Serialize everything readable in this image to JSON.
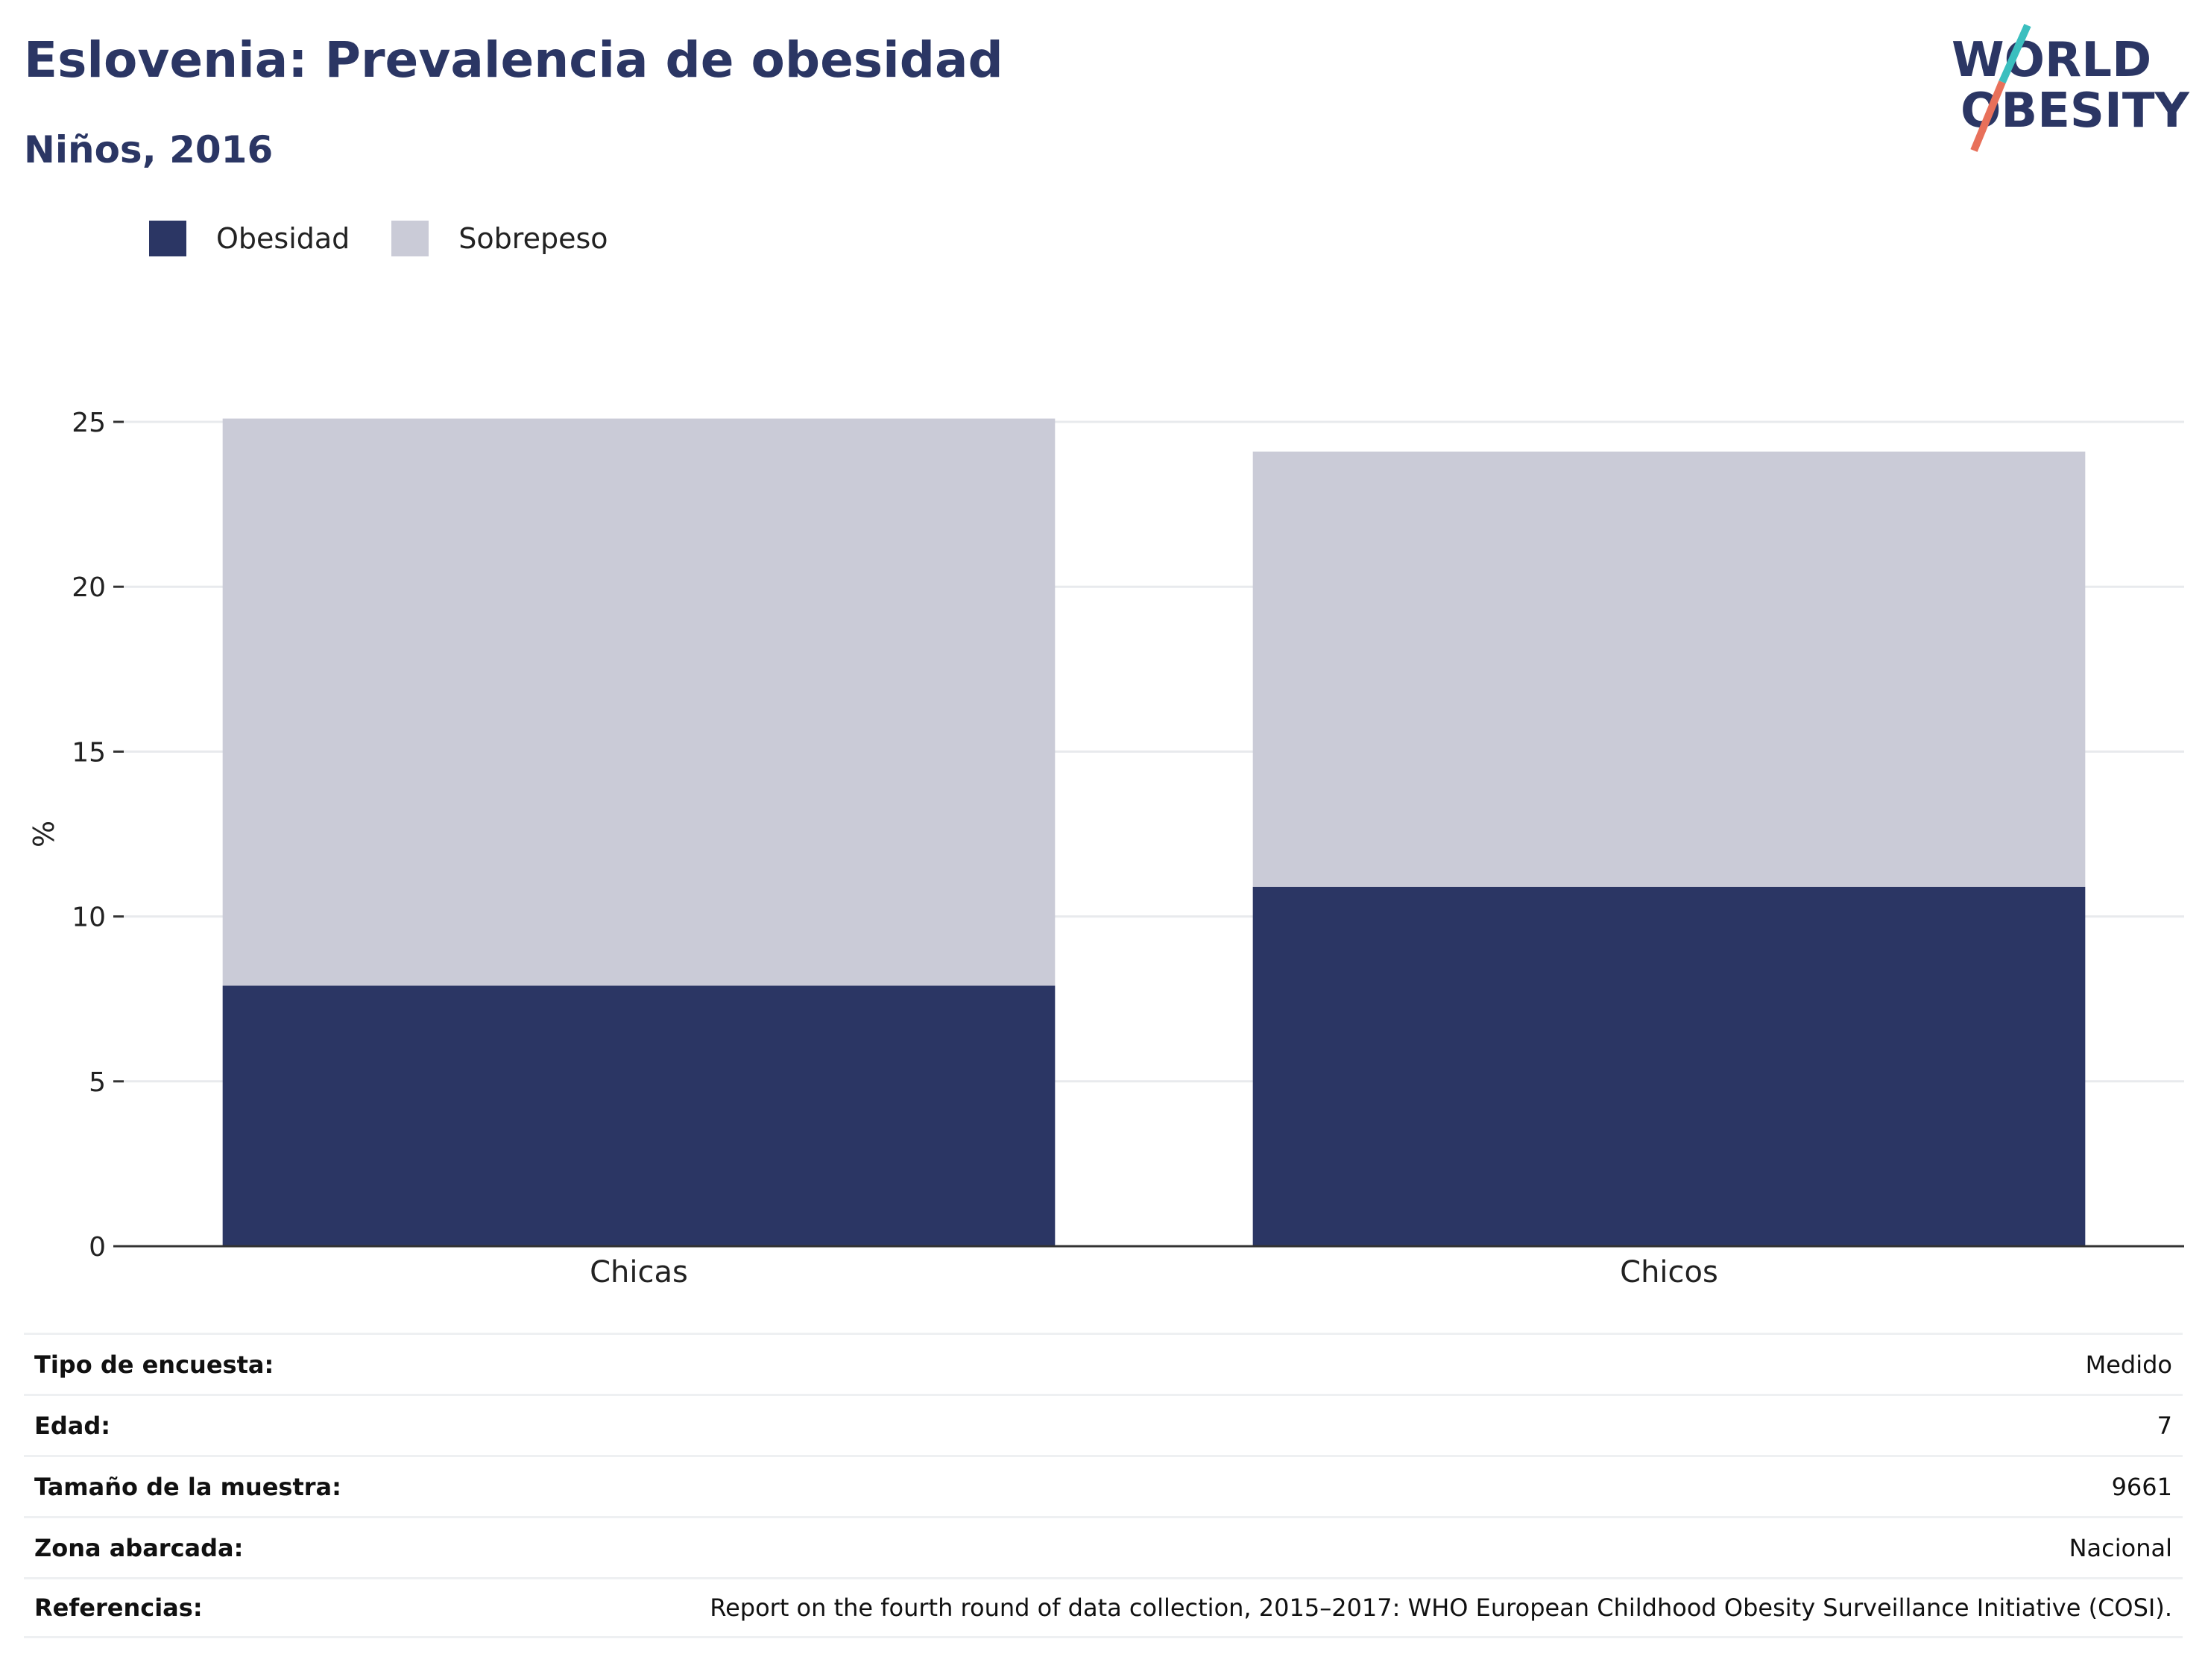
{
  "header": {
    "title": "Eslovenia: Prevalencia de obesidad",
    "subtitle": "Niños, 2016"
  },
  "logo": {
    "line1": "WORLD",
    "line2": "OBESITY",
    "accent_teal": "#3bbfbf",
    "accent_coral": "#e8705a"
  },
  "colors": {
    "obesidad": "#2b3664",
    "sobrepeso": "#cacbd7",
    "grid": "#e8eaed",
    "axis": "#333333"
  },
  "chart_data": {
    "type": "bar",
    "stacked": true,
    "categories": [
      "Chicas",
      "Chicos"
    ],
    "series": [
      {
        "name": "Obesidad",
        "values": [
          7.9,
          10.9
        ]
      },
      {
        "name": "Sobrepeso",
        "values": [
          17.2,
          13.2
        ]
      }
    ],
    "ylabel": "%",
    "ylim": [
      0,
      25
    ],
    "yticks": [
      0,
      5,
      10,
      15,
      20,
      25
    ],
    "grid": true,
    "legend_position": "top-left"
  },
  "info": [
    {
      "label": "Tipo de encuesta:",
      "value": "Medido"
    },
    {
      "label": "Edad:",
      "value": "7"
    },
    {
      "label": "Tamaño de la muestra:",
      "value": "9661"
    },
    {
      "label": "Zona abarcada:",
      "value": "Nacional"
    },
    {
      "label": "Referencias:",
      "value": "Report on the fourth round of data collection, 2015–2017: WHO European Childhood Obesity Surveillance Initiative (COSI)."
    }
  ]
}
